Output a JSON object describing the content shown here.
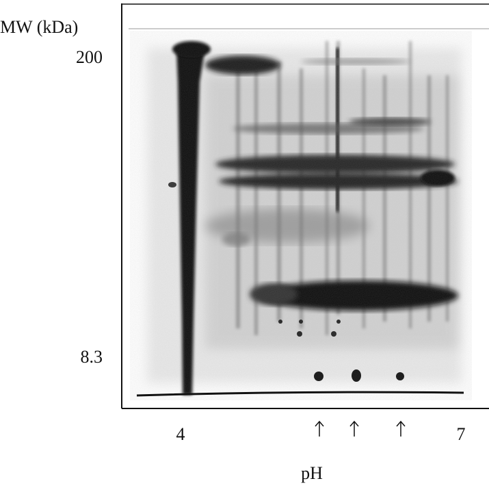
{
  "y_axis": {
    "title": "MW (kDa)",
    "labels": [
      "200",
      "8.3"
    ]
  },
  "x_axis": {
    "title": "pH",
    "labels": [
      "4",
      "7"
    ]
  }
}
